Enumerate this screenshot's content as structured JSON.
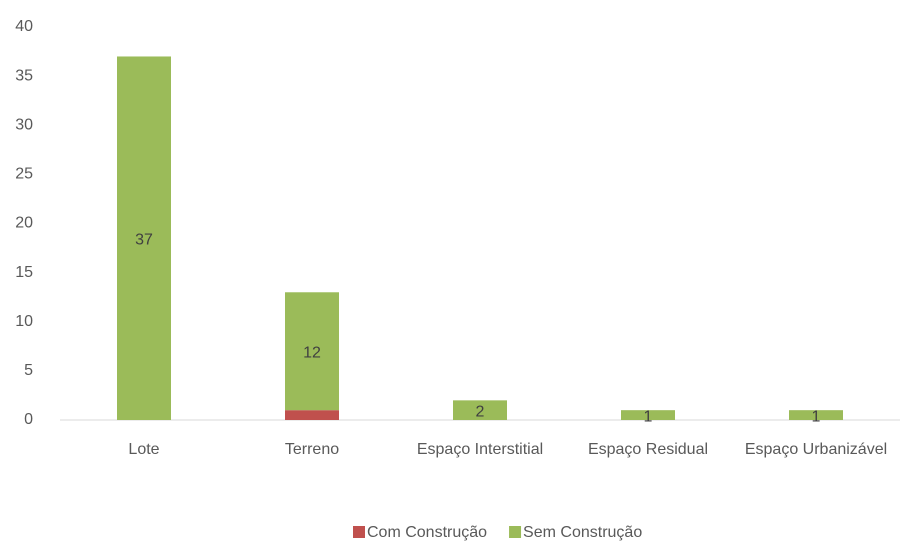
{
  "chart_data": {
    "type": "stacked_bar",
    "categories": [
      "Lote",
      "Terreno",
      "Espaço Interstitial",
      "Espaço Residual",
      "Espaço Urbanizável"
    ],
    "series": [
      {
        "name": "Com Construção",
        "color": "#c0504d",
        "values": [
          0,
          1,
          0,
          0,
          0
        ]
      },
      {
        "name": "Sem Construção",
        "color": "#9bbb59",
        "values": [
          37,
          12,
          2,
          1,
          1
        ],
        "value_labels": [
          "37",
          "12",
          "2",
          "1",
          "1"
        ]
      }
    ],
    "ylim": [
      0,
      40
    ],
    "yticks": [
      0,
      5,
      10,
      15,
      20,
      25,
      30,
      35,
      40
    ],
    "legend": "bottom"
  }
}
